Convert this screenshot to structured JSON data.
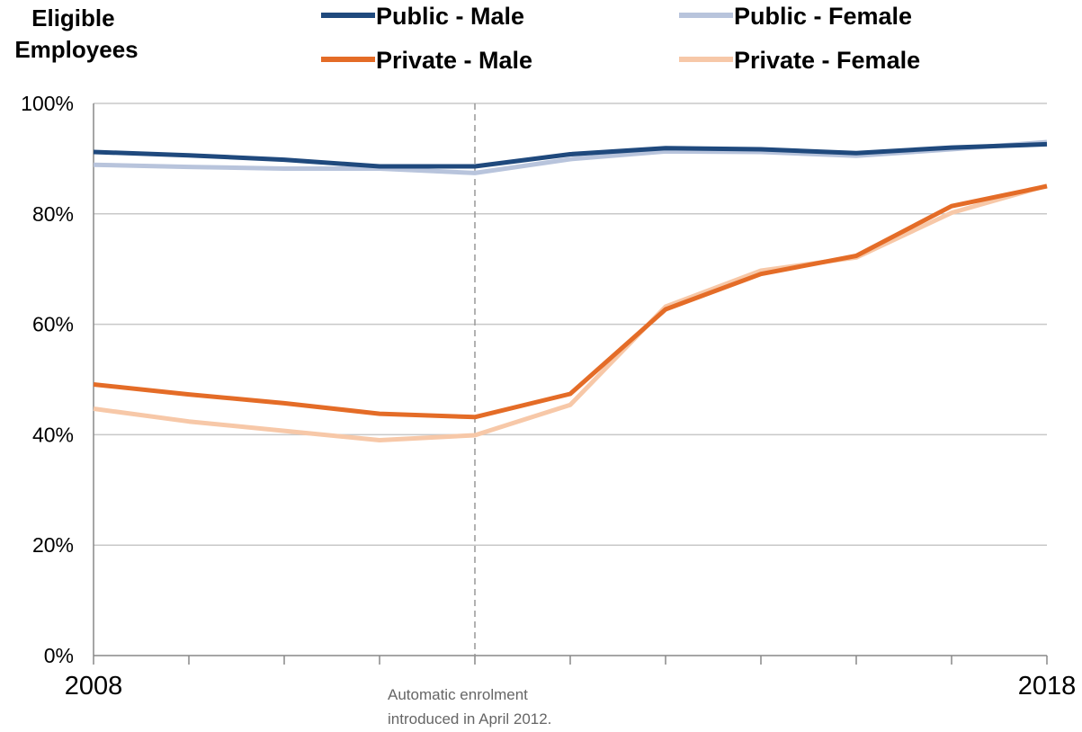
{
  "chart_data": {
    "type": "line",
    "ylabel": "Eligible Employees",
    "y_ticks": [
      "0%",
      "20%",
      "40%",
      "60%",
      "80%",
      "100%"
    ],
    "ylim": [
      0,
      100
    ],
    "x": [
      2008,
      2009,
      2010,
      2011,
      2012,
      2013,
      2014,
      2015,
      2016,
      2017,
      2018
    ],
    "x_tick_labels": [
      "2008",
      "2018"
    ],
    "xlim": [
      2008,
      2018
    ],
    "grid": "horizontal",
    "legend_position": "top",
    "series": [
      {
        "name": "Public - Male",
        "color": "#1f497d",
        "values": [
          91.2,
          90.6,
          89.8,
          88.6,
          88.6,
          90.8,
          91.9,
          91.7,
          91.0,
          92.0,
          92.6
        ]
      },
      {
        "name": "Public - Female",
        "color": "#b8c4dc",
        "values": [
          88.9,
          88.5,
          88.2,
          88.2,
          87.4,
          89.9,
          91.3,
          91.2,
          90.5,
          91.7,
          93.0
        ]
      },
      {
        "name": "Private - Male",
        "color": "#e46c27",
        "values": [
          49.1,
          47.3,
          45.7,
          43.8,
          43.2,
          47.4,
          62.7,
          69.1,
          72.4,
          81.4,
          85.0
        ]
      },
      {
        "name": "Private - Female",
        "color": "#f7c8a8",
        "values": [
          44.7,
          42.4,
          40.7,
          39.0,
          39.9,
          45.4,
          63.2,
          69.7,
          72.1,
          80.2,
          85.1
        ]
      }
    ],
    "annotation": {
      "line1": "Automatic enrolment",
      "line2": "introduced in April 2012.",
      "x": 2012
    }
  }
}
